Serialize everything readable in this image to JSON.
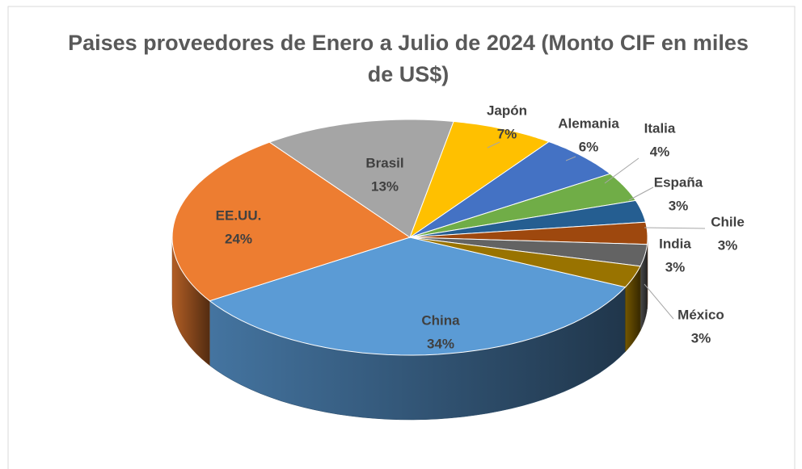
{
  "chart_data": {
    "type": "pie",
    "title": "Paises proveedores de Enero a Julio de 2024 (Monto CIF en miles de US$)",
    "categories": [
      "China",
      "EE.UU.",
      "Brasil",
      "Japón",
      "Alemania",
      "Italia",
      "España",
      "Chile",
      "India",
      "México"
    ],
    "values": [
      34,
      24,
      13,
      7,
      6,
      4,
      3,
      3,
      3,
      3
    ],
    "value_labels": [
      "34%",
      "24%",
      "13%",
      "7%",
      "6%",
      "4%",
      "3%",
      "3%",
      "3%",
      "3%"
    ],
    "colors": [
      "#5b9bd5",
      "#ed7d31",
      "#a5a5a5",
      "#ffc000",
      "#4472c4",
      "#70ad47",
      "#255e91",
      "#9e480e",
      "#636363",
      "#997300"
    ]
  }
}
